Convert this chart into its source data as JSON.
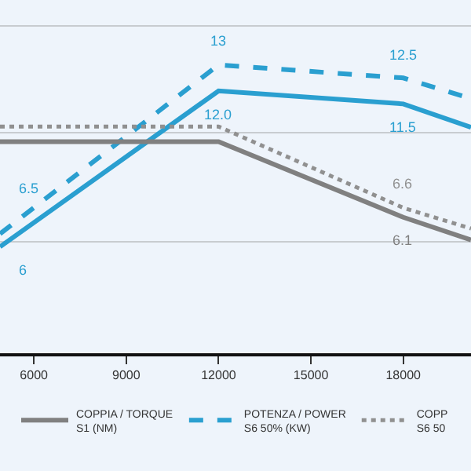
{
  "chart_data": {
    "type": "line",
    "x": [
      4900,
      12000,
      18000,
      20200
    ],
    "xlim": [
      4900,
      20200
    ],
    "xticks": [
      6000,
      9000,
      12000,
      15000,
      18000
    ],
    "ylim": [
      1.9,
      15.5
    ],
    "yticks": [
      {
        "value": 6.2,
        "label": null
      },
      {
        "value": 10.4,
        "label": null
      },
      {
        "value": 14.5,
        "label": null
      }
    ],
    "y2lim": [
      -1.1,
      17.6
    ],
    "tick_labels": "x",
    "grid": "y",
    "legend": "bottom",
    "series": [
      {
        "name": "COPPIA / TORQUE\nS1 (NM)",
        "color": "#808080",
        "line_style": "solid",
        "axis": "y2",
        "values": [
          10.1,
          10.1,
          6.1,
          4.9
        ],
        "value_labels": [
          null,
          null,
          "6.1",
          null
        ]
      },
      {
        "name": "POTENZA / POWER\nS6 50% (KW)",
        "color": "#2a9fd0",
        "line_style": "dashed",
        "values": [
          6.5,
          13,
          12.5,
          11.7
        ],
        "value_labels": [
          "6.5",
          "13",
          "12.5",
          null
        ]
      },
      {
        "name": "COPP\nS6 50",
        "color": "#909090",
        "line_style": "dotted",
        "axis": "y2",
        "values": [
          10.9,
          10.9,
          6.6,
          5.5
        ],
        "value_labels": [
          null,
          null,
          "6.6",
          null
        ]
      },
      {
        "color": "#2a9fd0",
        "line_style": "solid",
        "values": [
          6,
          12.0,
          11.5,
          10.6
        ],
        "value_labels": [
          "6",
          "12.0",
          "11.5",
          null
        ]
      }
    ]
  }
}
